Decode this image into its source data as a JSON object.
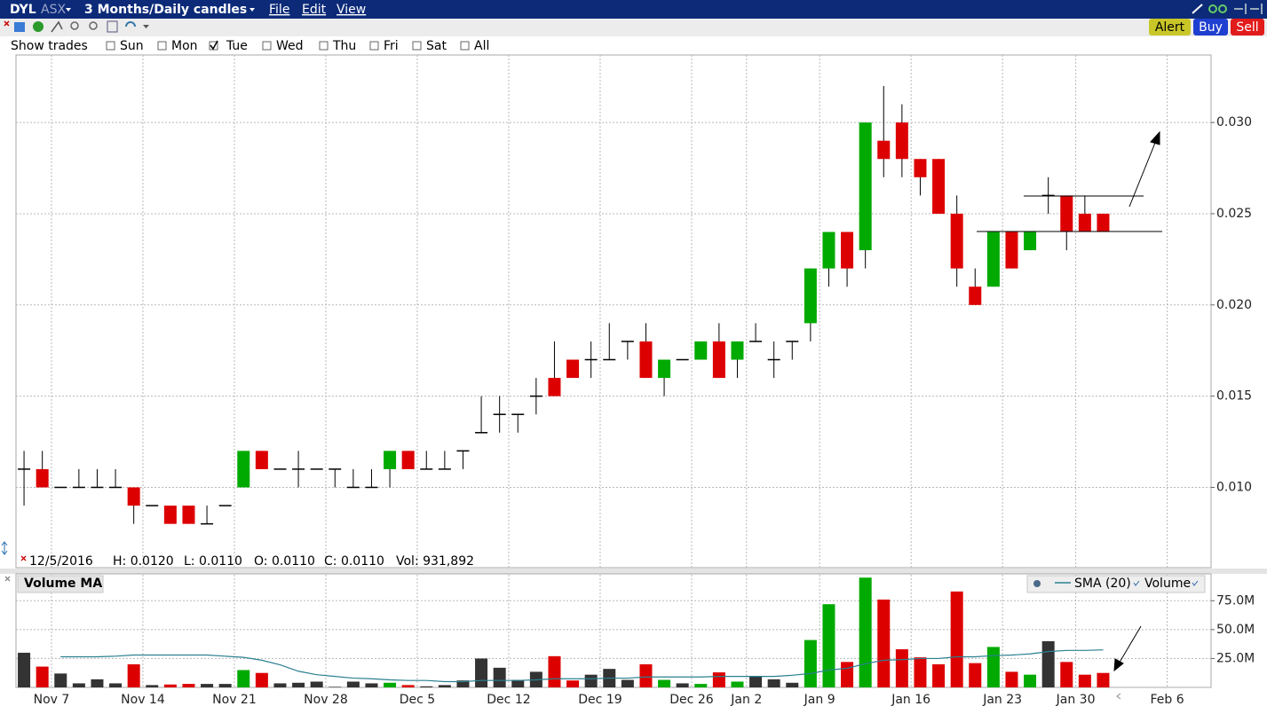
{
  "header": {
    "symbol": "DYL",
    "exchange": "ASX",
    "period": "3 Months/Daily candles",
    "menu": [
      "File",
      "Edit",
      "View"
    ]
  },
  "buttons": [
    "Alert",
    "Buy",
    "Sell"
  ],
  "show_trades": {
    "label": "Show trades",
    "days": [
      {
        "label": "Sun",
        "checked": false
      },
      {
        "label": "Mon",
        "checked": false
      },
      {
        "label": "Tue",
        "checked": true
      },
      {
        "label": "Wed",
        "checked": false
      },
      {
        "label": "Thu",
        "checked": false
      },
      {
        "label": "Fri",
        "checked": false
      },
      {
        "label": "Sat",
        "checked": false
      },
      {
        "label": "All",
        "checked": false
      }
    ]
  },
  "info_bar": {
    "date": "12/5/2016",
    "high": "H: 0.0120",
    "low": "L: 0.0110",
    "open": "O: 0.0110",
    "close": "C: 0.0110",
    "volume": "Vol: 931,892"
  },
  "chart_data": [
    {
      "type": "candlestick",
      "open": [
        0.011,
        0.011,
        0.01,
        0.01,
        0.01,
        0.01,
        0.01,
        0.009,
        0.009,
        0.009,
        0.008,
        0.009,
        0.01,
        0.012,
        0.011,
        0.011,
        0.011,
        0.011,
        0.01,
        0.01,
        0.011,
        0.012,
        0.011,
        0.011,
        0.012,
        0.013,
        0.014,
        0.014,
        0.015,
        0.016,
        0.017,
        0.017,
        0.017,
        0.018,
        0.018,
        0.016,
        0.017,
        0.017,
        0.018,
        0.017,
        0.018,
        0.017,
        0.018,
        0.019,
        0.022,
        0.024,
        0.023,
        0.029,
        0.03,
        0.028,
        0.028,
        0.025,
        0.021,
        0.021,
        0.024,
        0.023,
        0.026,
        0.026,
        0.025,
        0.025
      ],
      "high": [
        0.012,
        0.012,
        0.01,
        0.011,
        0.011,
        0.011,
        0.01,
        0.009,
        0.009,
        0.009,
        0.009,
        0.009,
        0.012,
        0.012,
        0.011,
        0.012,
        0.011,
        0.011,
        0.011,
        0.011,
        0.012,
        0.012,
        0.012,
        0.012,
        0.012,
        0.015,
        0.015,
        0.014,
        0.016,
        0.018,
        0.017,
        0.018,
        0.019,
        0.018,
        0.019,
        0.017,
        0.017,
        0.018,
        0.019,
        0.018,
        0.019,
        0.018,
        0.018,
        0.022,
        0.024,
        0.024,
        0.03,
        0.032,
        0.031,
        0.028,
        0.028,
        0.026,
        0.022,
        0.024,
        0.024,
        0.024,
        0.027,
        0.026,
        0.026,
        0.025
      ],
      "low": [
        0.009,
        0.01,
        0.01,
        0.01,
        0.01,
        0.01,
        0.008,
        0.009,
        0.008,
        0.008,
        0.008,
        0.009,
        0.01,
        0.011,
        0.011,
        0.01,
        0.011,
        0.01,
        0.01,
        0.01,
        0.01,
        0.011,
        0.011,
        0.011,
        0.011,
        0.013,
        0.013,
        0.013,
        0.014,
        0.015,
        0.016,
        0.016,
        0.017,
        0.017,
        0.016,
        0.015,
        0.017,
        0.017,
        0.016,
        0.016,
        0.018,
        0.016,
        0.017,
        0.018,
        0.021,
        0.021,
        0.022,
        0.027,
        0.027,
        0.026,
        0.025,
        0.021,
        0.02,
        0.021,
        0.022,
        0.023,
        0.025,
        0.023,
        0.024,
        0.024
      ],
      "close": [
        0.011,
        0.01,
        0.01,
        0.01,
        0.01,
        0.01,
        0.009,
        0.009,
        0.008,
        0.008,
        0.008,
        0.009,
        0.012,
        0.011,
        0.011,
        0.011,
        0.011,
        0.011,
        0.01,
        0.01,
        0.012,
        0.011,
        0.011,
        0.011,
        0.012,
        0.013,
        0.014,
        0.014,
        0.015,
        0.015,
        0.016,
        0.017,
        0.017,
        0.018,
        0.016,
        0.017,
        0.017,
        0.018,
        0.016,
        0.018,
        0.018,
        0.017,
        0.018,
        0.022,
        0.024,
        0.022,
        0.03,
        0.028,
        0.028,
        0.027,
        0.025,
        0.022,
        0.02,
        0.024,
        0.022,
        0.024,
        0.026,
        0.024,
        0.024,
        0.024
      ],
      "up_color": "#00aa00",
      "down_color": "#dd0000",
      "flat_color": "#000000",
      "ylim": [
        0.0056,
        0.0337
      ],
      "yticks": [
        {
          "value": 0.01,
          "label": "0.010"
        },
        {
          "value": 0.015,
          "label": "0.015"
        },
        {
          "value": 0.02,
          "label": "0.020"
        },
        {
          "value": 0.025,
          "label": "0.025"
        },
        {
          "value": 0.03,
          "label": "0.030"
        }
      ],
      "grid": true
    },
    {
      "type": "bar",
      "title": "Volume MA",
      "series": [
        {
          "name": "Volume",
          "values": [
            30000000,
            18000000,
            12000000,
            3500000,
            7000000,
            3500000,
            20000000,
            2000000,
            2500000,
            3000000,
            3000000,
            3000000,
            15000000,
            12500000,
            3500000,
            4000000,
            5000000,
            500000,
            5000000,
            3500000,
            4000000,
            2000000,
            931892,
            2000000,
            6000000,
            25000000,
            17000000,
            6500000,
            13500000,
            27000000,
            6000000,
            11000000,
            16000000,
            6500000,
            20000000,
            6500000,
            3500000,
            3000000,
            13000000,
            5000000,
            10000000,
            7000000,
            4000000,
            41000000,
            72000000,
            22000000,
            95000000,
            76000000,
            33000000,
            26000000,
            20000000,
            83000000,
            21000000,
            35000000,
            13500000,
            11000000,
            40000000,
            22000000,
            11000000,
            12500000
          ]
        },
        {
          "name": "SMA (20)",
          "type": "line",
          "color": "#2a8090",
          "values": [
            null,
            null,
            26500000,
            26500000,
            26500000,
            27000000,
            28000000,
            28000000,
            28000000,
            28000000,
            28000000,
            27000000,
            26000000,
            23500000,
            19500000,
            14000000,
            11000000,
            9500000,
            8000000,
            7500000,
            6500000,
            6000000,
            6000000,
            5000000,
            5000000,
            6000000,
            6000000,
            6000000,
            6500000,
            7500000,
            7500000,
            7500000,
            8000000,
            8000000,
            9000000,
            9000000,
            9000000,
            9000000,
            9500000,
            9500000,
            9500000,
            9500000,
            10500000,
            12000000,
            15000000,
            16500000,
            20500000,
            23500000,
            24000000,
            25000000,
            25000000,
            26500000,
            26500000,
            27500000,
            28000000,
            29000000,
            31000000,
            32000000,
            32000000,
            32500000
          ]
        }
      ],
      "ylim": [
        0,
        97500000
      ],
      "yticks": [
        {
          "value": 25000000,
          "label": "25.0M"
        },
        {
          "value": 50000000,
          "label": "50.0M"
        },
        {
          "value": 75000000,
          "label": "75.0M"
        }
      ],
      "xlim": [
        -0.44,
        64.9
      ],
      "xticks": [
        {
          "value": 1.5,
          "label": "Nov 7"
        },
        {
          "value": 6.5,
          "label": "Nov 14"
        },
        {
          "value": 11.5,
          "label": "Nov 21"
        },
        {
          "value": 16.5,
          "label": "Nov 28"
        },
        {
          "value": 21.5,
          "label": "Dec 5"
        },
        {
          "value": 26.5,
          "label": "Dec 12"
        },
        {
          "value": 31.5,
          "label": "Dec 19"
        },
        {
          "value": 36.5,
          "label": "Dec 26"
        },
        {
          "value": 39.5,
          "label": "Jan 2"
        },
        {
          "value": 43.5,
          "label": "Jan 9"
        },
        {
          "value": 48.5,
          "label": "Jan 16"
        },
        {
          "value": 53.5,
          "label": "Jan 23"
        },
        {
          "value": 57.5,
          "label": "Jan 30"
        },
        {
          "value": 62.5,
          "label": "Feb 6"
        }
      ],
      "grid": true
    }
  ]
}
